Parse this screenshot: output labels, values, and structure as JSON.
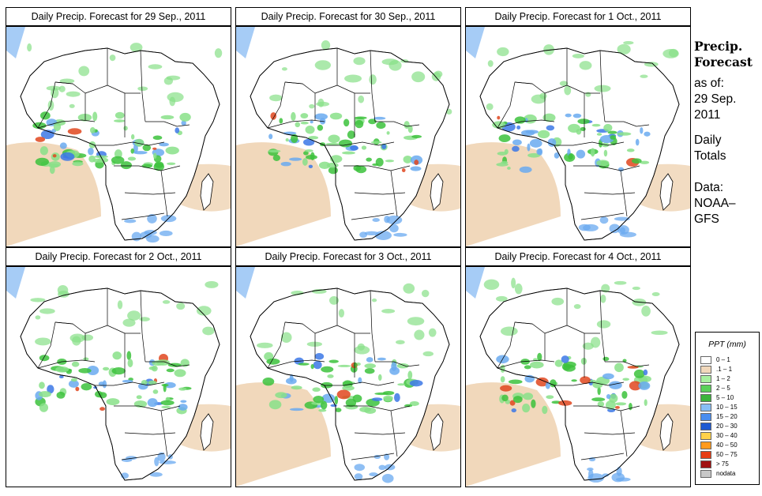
{
  "colors": {
    "land": "#ffffff",
    "border": "#000000",
    "dry": "#f1d8bb",
    "wet_light": "#88e088",
    "wet_mid": "#3cc23c",
    "blue_light": "#6aaaf0",
    "blue_mid": "#3c78e6",
    "heavy": "#e0461e"
  },
  "panels": [
    {
      "title": "Daily Precip. Forecast for  29 Sep., 2011"
    },
    {
      "title": "Daily Precip. Forecast for  30 Sep., 2011"
    },
    {
      "title": "Daily Precip. Forecast for  1 Oct., 2011"
    },
    {
      "title": "Daily Precip. Forecast for  2 Oct., 2011"
    },
    {
      "title": "Daily Precip. Forecast for  3 Oct., 2011"
    },
    {
      "title": "Daily Precip. Forecast for  4 Oct., 2011"
    }
  ],
  "sidebar": {
    "title_line1": "Precip.",
    "title_line2": "Forecast",
    "asof_line1": "as of:",
    "asof_line2": "29 Sep.",
    "asof_line3": "2011",
    "daily_line1": "Daily",
    "daily_line2": "Totals",
    "data_line1": "Data:",
    "data_line2": "NOAA–",
    "data_line3": "GFS"
  },
  "legend": {
    "title": "PPT (mm)",
    "items": [
      {
        "label": "0 – 1",
        "color": "#ffffff"
      },
      {
        "label": ".1 – 1",
        "color": "#f1d8bb"
      },
      {
        "label": "1 – 2",
        "color": "#a8f0a0"
      },
      {
        "label": "2 – 5",
        "color": "#5ad05a"
      },
      {
        "label": "5 – 10",
        "color": "#3cb43c"
      },
      {
        "label": "10 – 15",
        "color": "#88bff5"
      },
      {
        "label": "15 – 20",
        "color": "#4a8ef0"
      },
      {
        "label": "20 – 30",
        "color": "#1e5ad2"
      },
      {
        "label": "30 – 40",
        "color": "#ffd24a"
      },
      {
        "label": "40 – 50",
        "color": "#ff9a1e"
      },
      {
        "label": "50 – 75",
        "color": "#e63c14"
      },
      {
        "label": "> 75",
        "color": "#a01010"
      },
      {
        "label": "nodata",
        "color": "#c8c8c8"
      }
    ]
  }
}
